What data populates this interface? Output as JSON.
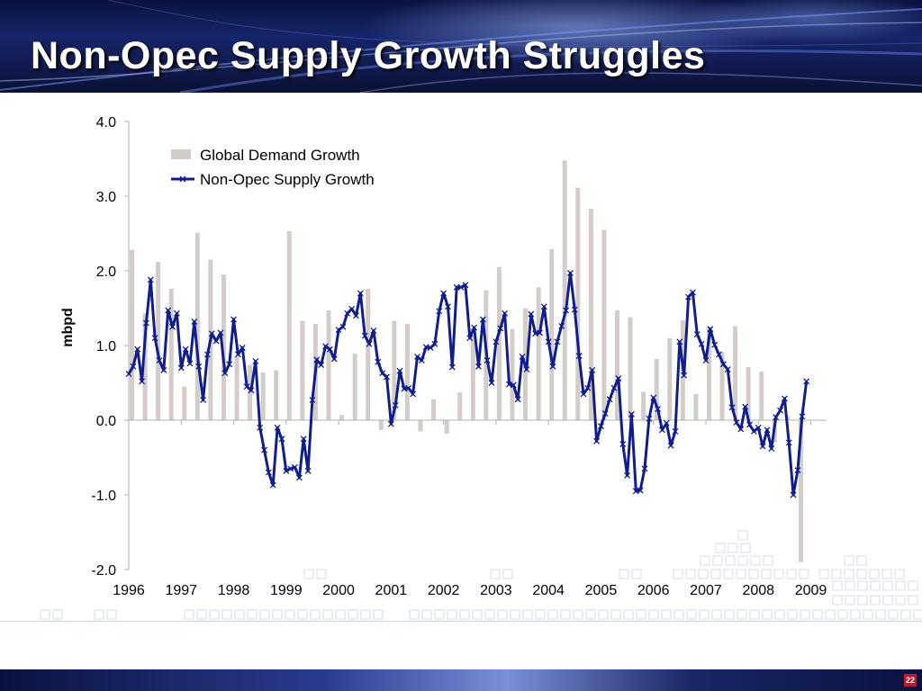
{
  "slide": {
    "title": "Non-Opec Supply Growth Struggles",
    "page_number": "22"
  },
  "colors": {
    "demand_bar": "#d4ccc9",
    "supply_line": "#0f1e8c",
    "axis": "#b0b0b0"
  },
  "chart_data": {
    "type": "bar",
    "title": "",
    "xlabel": "",
    "ylabel": "mbpd",
    "ylim": [
      -2.0,
      4.0
    ],
    "yticks": [
      "4.0",
      "3.0",
      "2.0",
      "1.0",
      "0.0",
      "-1.0",
      "-2.0"
    ],
    "ytick_values": [
      4,
      3,
      2,
      1,
      0,
      -1,
      -2
    ],
    "xticks": [
      "1996",
      "1997",
      "1998",
      "1999",
      "2000",
      "2001",
      "2002",
      "2003",
      "2004",
      "2005",
      "2006",
      "2007",
      "2008",
      "2009"
    ],
    "x_start": 1996.0,
    "x_end": 2009.3,
    "grid": false,
    "legend_position": "top-left",
    "series": [
      {
        "name": "Global Demand Growth",
        "type": "bar",
        "period": "quarterly",
        "x_start": 1996.0,
        "values": [
          2.28,
          1.43,
          2.12,
          1.76,
          0.45,
          2.51,
          2.15,
          1.95,
          0.85,
          0.74,
          0.64,
          0.67,
          2.53,
          1.33,
          1.29,
          1.47,
          0.07,
          0.89,
          1.76,
          -0.13,
          1.33,
          1.29,
          -0.15,
          0.28,
          -0.18,
          0.37,
          1.13,
          1.74,
          2.05,
          1.22,
          1.5,
          1.78,
          2.29,
          3.48,
          3.11,
          2.83,
          2.55,
          1.47,
          1.38,
          0.38,
          0.82,
          1.1,
          1.34,
          0.35,
          1.25,
          0.91,
          1.26,
          0.71,
          0.65,
          -0.3,
          0.05,
          -1.9
        ]
      },
      {
        "name": "Non-Opec Supply Growth",
        "type": "line",
        "period": "monthly",
        "x_start": 1996.0,
        "values": [
          0.62,
          0.72,
          0.95,
          0.52,
          1.3,
          1.88,
          1.1,
          0.8,
          0.67,
          1.47,
          1.25,
          1.43,
          0.7,
          0.95,
          0.76,
          1.32,
          0.72,
          0.27,
          0.88,
          1.16,
          1.06,
          1.17,
          0.63,
          0.75,
          1.35,
          0.88,
          0.97,
          0.45,
          0.4,
          0.79,
          -0.1,
          -0.4,
          -0.7,
          -0.87,
          -0.1,
          -0.25,
          -0.68,
          -0.65,
          -0.63,
          -0.77,
          -0.25,
          -0.68,
          0.27,
          0.81,
          0.74,
          0.99,
          0.95,
          0.82,
          1.21,
          1.25,
          1.43,
          1.49,
          1.4,
          1.7,
          1.13,
          1.02,
          1.2,
          0.78,
          0.63,
          0.58,
          -0.05,
          0.2,
          0.66,
          0.42,
          0.43,
          0.35,
          0.85,
          0.8,
          0.98,
          0.97,
          1.02,
          1.46,
          1.7,
          1.52,
          0.71,
          1.78,
          1.78,
          1.81,
          1.1,
          1.24,
          0.72,
          1.35,
          0.8,
          0.5,
          1.05,
          1.23,
          1.43,
          0.48,
          0.47,
          0.28,
          0.85,
          0.68,
          1.42,
          1.16,
          1.17,
          1.52,
          1.05,
          0.72,
          1.05,
          1.26,
          1.47,
          1.97,
          1.48,
          0.86,
          0.35,
          0.43,
          0.67,
          -0.28,
          -0.08,
          0.09,
          0.28,
          0.43,
          0.56,
          -0.32,
          -0.74,
          0.08,
          -0.95,
          -0.94,
          -0.65,
          0.02,
          0.3,
          0.15,
          -0.13,
          -0.04,
          -0.34,
          -0.15,
          1.05,
          0.6,
          1.65,
          1.71,
          1.15,
          1.02,
          0.8,
          1.22,
          1.01,
          0.88,
          0.75,
          0.68,
          0.17,
          -0.03,
          -0.12,
          0.18,
          -0.06,
          -0.15,
          -0.1,
          -0.35,
          -0.13,
          -0.38,
          0.04,
          0.13,
          0.29,
          -0.3,
          -1.0,
          -0.67,
          0.05,
          0.52
        ]
      }
    ]
  }
}
